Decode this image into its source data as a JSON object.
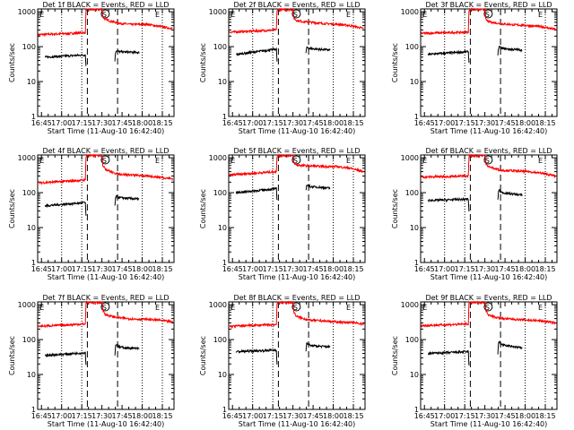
{
  "figure": {
    "panel_title_suffix": "BLACK = Events, RED = LLD",
    "xlabel": "Start Time (11-Aug-10 16:42:40)",
    "ylabel": "Counts/sec",
    "y_scale": "log",
    "ylim": [
      1,
      1200
    ],
    "y_ticks": [
      "1",
      "10",
      "100",
      "1000"
    ],
    "x_range_minutes": [
      -0.5,
      101
    ],
    "x_ticks": [
      "16:45",
      "17:00",
      "17:15",
      "17:30",
      "17:45",
      "18:00",
      "18:15"
    ],
    "x_tick_minutes": [
      2.33,
      17.33,
      32.33,
      47.33,
      62.33,
      77.33,
      92.33
    ],
    "grid": false,
    "colors": {
      "events": "#000000",
      "lld": "#ff0000",
      "axis": "#000000"
    },
    "line_styles": {
      "dotted": [
        17.33,
        32.33,
        77.33,
        92.33
      ],
      "dashed": [
        36.5,
        59
      ]
    },
    "markers": [
      {
        "label": "E",
        "minute": 1
      },
      {
        "label": "S",
        "minute": 47.5
      },
      {
        "label": "E",
        "minute": 87
      }
    ]
  },
  "chart_data": [
    {
      "type": "line",
      "title": "Det 1f BLACK = Events, RED = LLD",
      "detector": "Det 1f",
      "panel": 1,
      "xlabel": "Start Time (11-Aug-10 16:42:40)",
      "ylabel": "Counts/sec",
      "y_scale": "log",
      "ylim": [
        1,
        1200
      ],
      "series": [
        {
          "name": "LLD",
          "color": "#ff0000",
          "x": [
            0,
            35,
            35.5,
            36,
            37,
            46,
            47,
            47.5,
            48,
            50,
            55,
            60,
            70,
            80,
            90,
            100
          ],
          "y": [
            220,
            250,
            1100,
            1150,
            1150,
            1150,
            1150,
            1120,
            700,
            600,
            520,
            470,
            430,
            440,
            380,
            330
          ]
        },
        {
          "name": "Events",
          "color": "#000000",
          "x": [
            5,
            35,
            35.5,
            57,
            57.5,
            58,
            60,
            65,
            75
          ],
          "y": [
            50,
            58,
            28,
            40,
            70,
            78,
            72,
            70,
            68
          ]
        }
      ]
    },
    {
      "type": "line",
      "title": "Det 2f BLACK = Events, RED = LLD",
      "detector": "Det 2f",
      "panel": 2,
      "xlabel": "Start Time (11-Aug-10 16:42:40)",
      "ylabel": "Counts/sec",
      "y_scale": "log",
      "ylim": [
        1,
        1200
      ],
      "series": [
        {
          "name": "LLD",
          "color": "#ff0000",
          "x": [
            0,
            35,
            35.5,
            36,
            37,
            46,
            47,
            47.5,
            48,
            50,
            55,
            60,
            70,
            80,
            90,
            100
          ],
          "y": [
            260,
            300,
            1100,
            1150,
            1150,
            1150,
            1150,
            1120,
            650,
            560,
            520,
            500,
            460,
            440,
            400,
            330
          ]
        },
        {
          "name": "Events",
          "color": "#000000",
          "x": [
            5,
            35,
            35.5,
            57,
            57.5,
            58,
            60,
            65,
            75
          ],
          "y": [
            60,
            85,
            38,
            65,
            90,
            95,
            88,
            85,
            80
          ]
        }
      ]
    },
    {
      "type": "line",
      "title": "Det 3f BLACK = Events, RED = LLD",
      "detector": "Det 3f",
      "panel": 3,
      "xlabel": "Start Time (11-Aug-10 16:42:40)",
      "ylabel": "Counts/sec",
      "y_scale": "log",
      "ylim": [
        1,
        1200
      ],
      "series": [
        {
          "name": "LLD",
          "color": "#ff0000",
          "x": [
            0,
            35,
            35.5,
            36,
            37,
            46,
            47,
            47.5,
            48,
            50,
            55,
            60,
            70,
            80,
            90,
            100
          ],
          "y": [
            240,
            260,
            1100,
            1150,
            1150,
            1150,
            1150,
            1120,
            600,
            520,
            480,
            450,
            420,
            400,
            370,
            310
          ]
        },
        {
          "name": "Events",
          "color": "#000000",
          "x": [
            5,
            35,
            35.5,
            57,
            57.5,
            58,
            60,
            65,
            75
          ],
          "y": [
            60,
            72,
            35,
            60,
            90,
            98,
            90,
            85,
            80
          ]
        }
      ]
    },
    {
      "type": "line",
      "title": "Det 4f BLACK = Events, RED = LLD",
      "detector": "Det 4f",
      "panel": 4,
      "xlabel": "Start Time (11-Aug-10 16:42:40)",
      "ylabel": "Counts/sec",
      "y_scale": "log",
      "ylim": [
        1,
        1200
      ],
      "series": [
        {
          "name": "LLD",
          "color": "#ff0000",
          "x": [
            0,
            35,
            35.5,
            36,
            37,
            46,
            47,
            47.5,
            48,
            50,
            55,
            60,
            70,
            80,
            90,
            100
          ],
          "y": [
            190,
            230,
            1100,
            1150,
            1150,
            1150,
            1150,
            1120,
            600,
            480,
            380,
            340,
            320,
            300,
            280,
            250
          ]
        },
        {
          "name": "Events",
          "color": "#000000",
          "x": [
            5,
            35,
            35.5,
            57,
            57.5,
            58,
            60,
            65,
            75
          ],
          "y": [
            42,
            52,
            22,
            40,
            70,
            78,
            72,
            70,
            65
          ]
        }
      ]
    },
    {
      "type": "line",
      "title": "Det 5f BLACK = Events, RED = LLD",
      "detector": "Det 5f",
      "panel": 5,
      "xlabel": "Start Time (11-Aug-10 16:42:40)",
      "ylabel": "Counts/sec",
      "y_scale": "log",
      "ylim": [
        1,
        1200
      ],
      "series": [
        {
          "name": "LLD",
          "color": "#ff0000",
          "x": [
            0,
            35,
            35.5,
            36,
            37,
            46,
            47,
            47.5,
            48,
            50,
            55,
            60,
            70,
            80,
            90,
            100
          ],
          "y": [
            320,
            400,
            1100,
            1150,
            1150,
            1150,
            1150,
            1120,
            700,
            620,
            600,
            580,
            560,
            560,
            500,
            400
          ]
        },
        {
          "name": "Events",
          "color": "#000000",
          "x": [
            5,
            35,
            35.5,
            57,
            57.5,
            58,
            60,
            65,
            75
          ],
          "y": [
            100,
            130,
            60,
            120,
            160,
            165,
            150,
            145,
            135
          ]
        }
      ]
    },
    {
      "type": "line",
      "title": "Det 6f BLACK = Events, RED = LLD",
      "detector": "Det 6f",
      "panel": 6,
      "xlabel": "Start Time (11-Aug-10 16:42:40)",
      "ylabel": "Counts/sec",
      "y_scale": "log",
      "ylim": [
        1,
        1200
      ],
      "series": [
        {
          "name": "LLD",
          "color": "#ff0000",
          "x": [
            0,
            35,
            35.5,
            36,
            37,
            46,
            47,
            47.5,
            48,
            50,
            55,
            60,
            70,
            80,
            90,
            100
          ],
          "y": [
            280,
            300,
            1100,
            1150,
            1150,
            1150,
            1150,
            1120,
            700,
            560,
            480,
            440,
            420,
            400,
            360,
            300
          ]
        },
        {
          "name": "Events",
          "color": "#000000",
          "x": [
            5,
            35,
            35.5,
            57,
            57.5,
            58,
            60,
            65,
            75
          ],
          "y": [
            60,
            65,
            30,
            60,
            110,
            120,
            100,
            95,
            85
          ]
        }
      ]
    },
    {
      "type": "line",
      "title": "Det 7f BLACK = Events, RED = LLD",
      "detector": "Det 7f",
      "panel": 7,
      "xlabel": "Start Time (11-Aug-10 16:42:40)",
      "ylabel": "Counts/sec",
      "y_scale": "log",
      "ylim": [
        1,
        1200
      ],
      "series": [
        {
          "name": "LLD",
          "color": "#ff0000",
          "x": [
            0,
            35,
            35.5,
            36,
            37,
            46,
            47,
            47.5,
            48,
            50,
            55,
            60,
            70,
            80,
            90,
            100
          ],
          "y": [
            240,
            280,
            1100,
            1150,
            1150,
            1150,
            1150,
            1120,
            700,
            520,
            460,
            420,
            390,
            380,
            360,
            320
          ]
        },
        {
          "name": "Events",
          "color": "#000000",
          "x": [
            5,
            35,
            35.5,
            57,
            57.5,
            58,
            60,
            65,
            75
          ],
          "y": [
            35,
            42,
            18,
            35,
            70,
            72,
            62,
            58,
            55
          ]
        }
      ]
    },
    {
      "type": "line",
      "title": "Det 8f BLACK = Events, RED = LLD",
      "detector": "Det 8f",
      "panel": 8,
      "xlabel": "Start Time (11-Aug-10 16:42:40)",
      "ylabel": "Counts/sec",
      "y_scale": "log",
      "ylim": [
        1,
        1200
      ],
      "series": [
        {
          "name": "LLD",
          "color": "#ff0000",
          "x": [
            0,
            35,
            35.5,
            36,
            37,
            46,
            47,
            47.5,
            48,
            50,
            55,
            60,
            70,
            80,
            90,
            100
          ],
          "y": [
            240,
            270,
            1100,
            1150,
            1150,
            1150,
            1150,
            1120,
            600,
            460,
            400,
            360,
            340,
            320,
            310,
            280
          ]
        },
        {
          "name": "Events",
          "color": "#000000",
          "x": [
            5,
            35,
            35.5,
            57,
            57.5,
            58,
            60,
            65,
            75
          ],
          "y": [
            45,
            50,
            20,
            45,
            75,
            78,
            68,
            65,
            62
          ]
        }
      ]
    },
    {
      "type": "line",
      "title": "Det 9f BLACK = Events, RED = LLD",
      "detector": "Det 9f",
      "panel": 9,
      "xlabel": "Start Time (11-Aug-10 16:42:40)",
      "ylabel": "Counts/sec",
      "y_scale": "log",
      "ylim": [
        1,
        1200
      ],
      "series": [
        {
          "name": "LLD",
          "color": "#ff0000",
          "x": [
            0,
            35,
            35.5,
            36,
            37,
            46,
            47,
            47.5,
            48,
            50,
            55,
            60,
            70,
            80,
            90,
            100
          ],
          "y": [
            250,
            280,
            1100,
            1150,
            1150,
            1150,
            1150,
            1120,
            700,
            520,
            440,
            400,
            380,
            360,
            340,
            300
          ]
        },
        {
          "name": "Events",
          "color": "#000000",
          "x": [
            5,
            35,
            35.5,
            57,
            57.5,
            58,
            60,
            65,
            75
          ],
          "y": [
            40,
            45,
            18,
            40,
            80,
            85,
            72,
            65,
            58
          ]
        }
      ]
    }
  ]
}
